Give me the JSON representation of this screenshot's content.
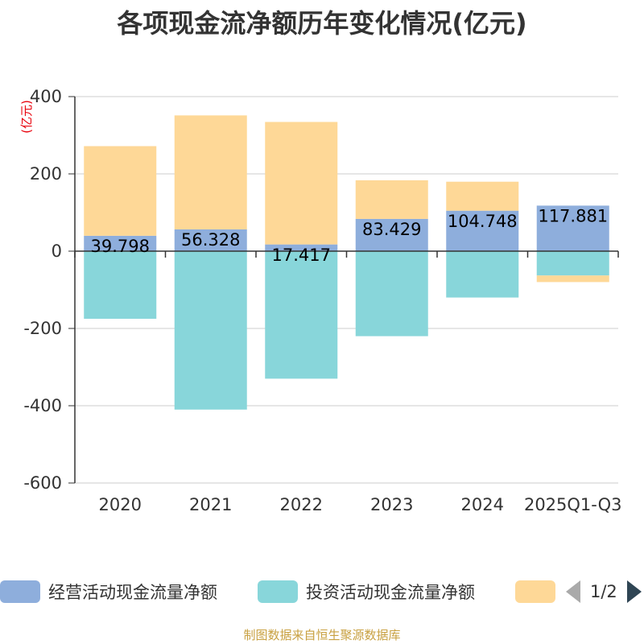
{
  "chart_data": {
    "type": "bar",
    "stacked": true,
    "title": "各项现金流净额历年变化情况(亿元)",
    "ylabel": "(亿元)",
    "ylim": [
      -600,
      400
    ],
    "yticks": [
      400,
      200,
      0,
      -200,
      -400,
      -600
    ],
    "grid": true,
    "categories": [
      "2020",
      "2021",
      "2022",
      "2023",
      "2024",
      "2025Q1-Q3"
    ],
    "series": [
      {
        "name": "经营活动现金流量净额",
        "color": "#8eaedc",
        "values": [
          39.798,
          56.328,
          17.417,
          83.429,
          104.748,
          117.881
        ],
        "labels": [
          "39.798",
          "56.328",
          "17.417",
          "83.429",
          "104.748",
          "117.881"
        ]
      },
      {
        "name": "投资活动现金流量净额",
        "color": "#88d6da",
        "values": [
          -175,
          -410,
          -330,
          -220,
          -120,
          -63
        ]
      },
      {
        "name": "",
        "color": "#fed897",
        "values": [
          232,
          295,
          317,
          100,
          75,
          -17
        ]
      }
    ]
  },
  "legend": {
    "items": [
      {
        "label": "经营活动现金流量净额",
        "color": "#8eaedc"
      },
      {
        "label": "投资活动现金流量净额",
        "color": "#88d6da"
      },
      {
        "label": "",
        "color": "#fed897"
      }
    ],
    "page": "1/2"
  },
  "source": "制图数据来自恒生聚源数据库"
}
